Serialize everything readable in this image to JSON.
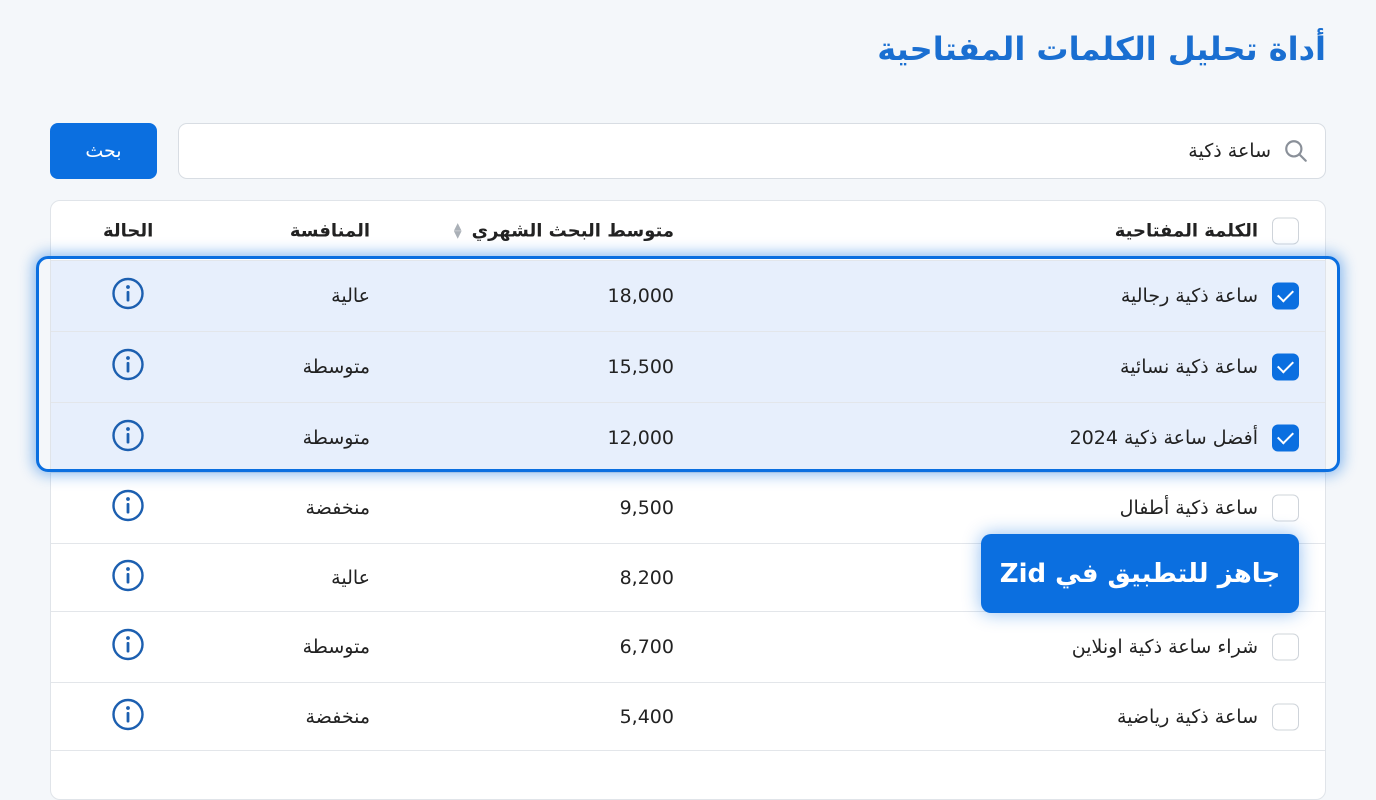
{
  "title": "أداة تحليل الكلمات المفتاحية",
  "search": {
    "value": "ساعة ذكية",
    "button": "بحث"
  },
  "table": {
    "headers": {
      "keyword": "الكلمة المفتاحية",
      "volume": "متوسط البحث الشهري",
      "competition": "المنافسة",
      "status": "الحالة"
    },
    "rows": [
      {
        "keyword": "ساعة ذكية رجالية",
        "volume": "18,000",
        "competition": "عالية",
        "checked": true
      },
      {
        "keyword": "ساعة ذكية نسائية",
        "volume": "15,500",
        "competition": "متوسطة",
        "checked": true
      },
      {
        "keyword": "أفضل ساعة ذكية 2024",
        "volume": "12,000",
        "competition": "متوسطة",
        "checked": true
      },
      {
        "keyword": "ساعة ذكية أطفال",
        "volume": "9,500",
        "competition": "منخفضة",
        "checked": false
      },
      {
        "keyword": "",
        "volume": "8,200",
        "competition": "عالية",
        "checked": false
      },
      {
        "keyword": "شراء ساعة ذكية اونلاين",
        "volume": "6,700",
        "competition": "متوسطة",
        "checked": false
      },
      {
        "keyword": "ساعة ذكية رياضية",
        "volume": "5,400",
        "competition": "منخفضة",
        "checked": false
      }
    ]
  },
  "badge": "جاهز للتطبيق في Zid",
  "colors": {
    "accent": "#0b6fe0",
    "title": "#1a6fd1",
    "selected_row": "#e7effc"
  }
}
